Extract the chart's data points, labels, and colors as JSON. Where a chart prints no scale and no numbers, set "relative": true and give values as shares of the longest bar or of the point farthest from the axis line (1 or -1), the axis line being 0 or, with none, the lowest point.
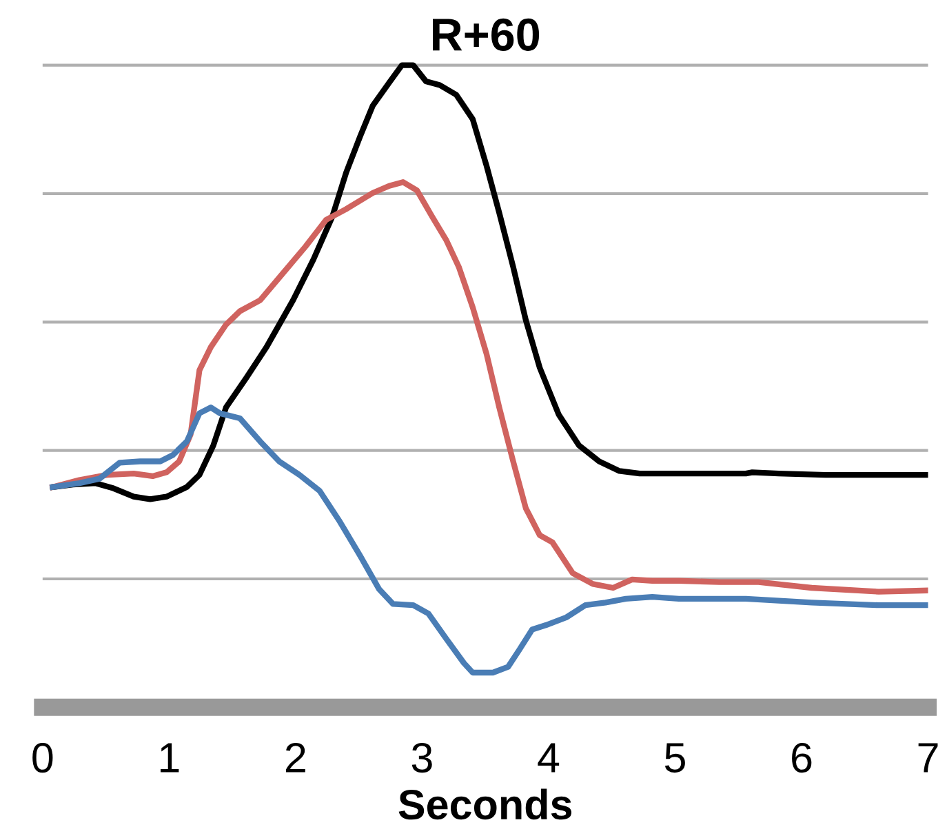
{
  "chart_data": {
    "type": "line",
    "title": "R+60",
    "xlabel": "Seconds",
    "relative": true,
    "xlim": [
      0,
      7
    ],
    "xticks": [
      0,
      1,
      2,
      3,
      4,
      5,
      6,
      7
    ],
    "grid": "y",
    "legend": false,
    "marker": "none",
    "line_style": "solid",
    "series": [
      {
        "color": "#000000",
        "x": [
          0.08,
          0.24,
          0.42,
          0.56,
          0.72,
          0.85,
          0.98,
          1.14,
          1.24,
          1.35,
          1.45,
          1.61,
          1.77,
          1.98,
          2.14,
          2.29,
          2.4,
          2.51,
          2.61,
          2.74,
          2.84,
          2.93,
          3.03,
          3.14,
          3.27,
          3.4,
          3.51,
          3.61,
          3.72,
          3.82,
          3.93,
          4.08,
          4.24,
          4.4,
          4.56,
          4.72,
          5.03,
          5.56,
          5.61,
          5.82,
          6.19,
          6.61,
          7.0
        ],
        "values": [
          0.343,
          0.347,
          0.349,
          0.341,
          0.328,
          0.324,
          0.328,
          0.343,
          0.362,
          0.408,
          0.467,
          0.513,
          0.561,
          0.634,
          0.697,
          0.764,
          0.833,
          0.889,
          0.937,
          0.973,
          1.0,
          1.0,
          0.975,
          0.969,
          0.954,
          0.916,
          0.843,
          0.77,
          0.686,
          0.603,
          0.529,
          0.456,
          0.408,
          0.383,
          0.368,
          0.364,
          0.364,
          0.364,
          0.366,
          0.364,
          0.362,
          0.362,
          0.362
        ]
      },
      {
        "color": "#d0635f",
        "x": [
          0.08,
          0.29,
          0.51,
          0.72,
          0.87,
          0.98,
          1.08,
          1.17,
          1.24,
          1.33,
          1.45,
          1.56,
          1.72,
          1.87,
          2.08,
          2.24,
          2.4,
          2.61,
          2.74,
          2.85,
          2.96,
          3.08,
          3.19,
          3.29,
          3.4,
          3.51,
          3.61,
          3.72,
          3.82,
          3.93,
          4.03,
          4.19,
          4.35,
          4.51,
          4.66,
          4.82,
          5.03,
          5.35,
          5.66,
          6.08,
          6.61,
          7.0
        ],
        "values": [
          0.343,
          0.354,
          0.362,
          0.364,
          0.36,
          0.366,
          0.383,
          0.425,
          0.525,
          0.561,
          0.596,
          0.617,
          0.634,
          0.669,
          0.718,
          0.759,
          0.776,
          0.801,
          0.812,
          0.818,
          0.805,
          0.764,
          0.728,
          0.686,
          0.623,
          0.55,
          0.467,
          0.383,
          0.31,
          0.268,
          0.257,
          0.209,
          0.192,
          0.186,
          0.199,
          0.197,
          0.197,
          0.195,
          0.195,
          0.186,
          0.18,
          0.182
        ]
      },
      {
        "color": "#4a7db5",
        "x": [
          0.08,
          0.29,
          0.45,
          0.61,
          0.77,
          0.93,
          1.03,
          1.14,
          1.24,
          1.33,
          1.4,
          1.56,
          1.72,
          1.87,
          2.03,
          2.19,
          2.35,
          2.51,
          2.66,
          2.77,
          2.93,
          3.05,
          3.19,
          3.33,
          3.4,
          3.56,
          3.68,
          3.77,
          3.87,
          3.98,
          4.14,
          4.29,
          4.45,
          4.61,
          4.82,
          5.03,
          5.56,
          6.08,
          6.61,
          7.0
        ],
        "values": [
          0.343,
          0.349,
          0.356,
          0.381,
          0.383,
          0.383,
          0.393,
          0.414,
          0.458,
          0.467,
          0.458,
          0.45,
          0.414,
          0.383,
          0.362,
          0.337,
          0.289,
          0.236,
          0.184,
          0.161,
          0.159,
          0.146,
          0.107,
          0.069,
          0.054,
          0.054,
          0.063,
          0.09,
          0.121,
          0.128,
          0.14,
          0.159,
          0.163,
          0.169,
          0.172,
          0.169,
          0.169,
          0.163,
          0.159,
          0.159
        ]
      }
    ]
  }
}
